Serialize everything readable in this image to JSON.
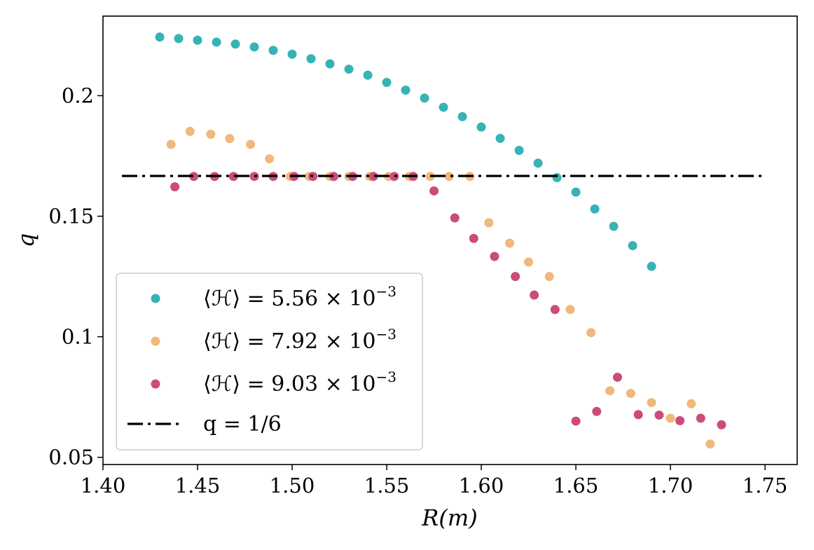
{
  "chart_data": {
    "type": "scatter",
    "title": "",
    "xlabel": "R(m)",
    "ylabel": "q",
    "xlim": [
      1.4,
      1.767
    ],
    "ylim": [
      0.047,
      0.233
    ],
    "xticks": [
      {
        "value": 1.4,
        "label": "1.40"
      },
      {
        "value": 1.45,
        "label": "1.45"
      },
      {
        "value": 1.5,
        "label": "1.50"
      },
      {
        "value": 1.55,
        "label": "1.55"
      },
      {
        "value": 1.6,
        "label": "1.60"
      },
      {
        "value": 1.65,
        "label": "1.65"
      },
      {
        "value": 1.7,
        "label": "1.70"
      },
      {
        "value": 1.75,
        "label": "1.75"
      }
    ],
    "yticks": [
      {
        "value": 0.05,
        "label": "0.05"
      },
      {
        "value": 0.1,
        "label": "0.1"
      },
      {
        "value": 0.15,
        "label": "0.15"
      },
      {
        "value": 0.2,
        "label": "0.2"
      }
    ],
    "grid": false,
    "legend_position": "lower-left",
    "series": [
      {
        "name": "⟨ℋ⟩ = 5.56 × 10⁻³",
        "color": "#36b3b5",
        "x": [
          1.43,
          1.44,
          1.45,
          1.46,
          1.47,
          1.48,
          1.49,
          1.5,
          1.51,
          1.52,
          1.53,
          1.54,
          1.55,
          1.56,
          1.57,
          1.58,
          1.59,
          1.6,
          1.61,
          1.62,
          1.63,
          1.64,
          1.65,
          1.66,
          1.67,
          1.68,
          1.69
        ],
        "y": [
          0.2243,
          0.2237,
          0.223,
          0.2222,
          0.2214,
          0.2202,
          0.2188,
          0.2172,
          0.2153,
          0.2132,
          0.211,
          0.2085,
          0.2055,
          0.2023,
          0.199,
          0.1952,
          0.1913,
          0.187,
          0.1823,
          0.1773,
          0.172,
          0.166,
          0.16,
          0.153,
          0.1458,
          0.1378,
          0.1292
        ]
      },
      {
        "name": "⟨ℋ⟩ = 7.92 × 10⁻³",
        "color": "#f0b87a",
        "x": [
          1.436,
          1.446,
          1.457,
          1.467,
          1.478,
          1.488,
          1.499,
          1.509,
          1.52,
          1.53,
          1.541,
          1.551,
          1.562,
          1.573,
          1.583,
          1.594,
          1.604,
          1.615,
          1.625,
          1.636,
          1.647,
          1.658,
          1.668,
          1.679,
          1.69,
          1.7,
          1.711,
          1.721
        ],
        "y": [
          0.1798,
          0.1852,
          0.184,
          0.1822,
          0.1798,
          0.1738,
          0.1665,
          0.1665,
          0.1665,
          0.1665,
          0.1665,
          0.1665,
          0.1665,
          0.1665,
          0.1665,
          0.1665,
          0.1473,
          0.1388,
          0.131,
          0.125,
          0.1113,
          0.1017,
          0.0776,
          0.0765,
          0.0727,
          0.0662,
          0.0722,
          0.0555
        ]
      },
      {
        "name": "⟨ℋ⟩ = 9.03 × 10⁻³",
        "color": "#cc4b79",
        "x": [
          1.438,
          1.448,
          1.459,
          1.469,
          1.48,
          1.49,
          1.501,
          1.511,
          1.522,
          1.532,
          1.543,
          1.554,
          1.564,
          1.575,
          1.586,
          1.596,
          1.607,
          1.618,
          1.628,
          1.639,
          1.65,
          1.661,
          1.672,
          1.683,
          1.694,
          1.705,
          1.716,
          1.727
        ],
        "y": [
          0.1622,
          0.1665,
          0.1665,
          0.1665,
          0.1665,
          0.1665,
          0.1665,
          0.1665,
          0.1665,
          0.1665,
          0.1665,
          0.1665,
          0.1665,
          0.1605,
          0.1493,
          0.1408,
          0.1333,
          0.125,
          0.1173,
          0.1113,
          0.065,
          0.069,
          0.0832,
          0.0677,
          0.0675,
          0.0652,
          0.0662,
          0.0635
        ]
      }
    ],
    "reference_line": {
      "label": "q = 1/6",
      "y": 0.1667,
      "x_range": [
        1.41,
        1.75
      ],
      "color": "#000000",
      "style": "dash-dot"
    },
    "legend": [
      {
        "kind": "marker",
        "color": "#36b3b5",
        "prefix": "⟨ℋ⟩ = 5.56 × 10",
        "exponent": "−3"
      },
      {
        "kind": "marker",
        "color": "#f0b87a",
        "prefix": "⟨ℋ⟩ = 7.92 × 10",
        "exponent": "−3"
      },
      {
        "kind": "marker",
        "color": "#cc4b79",
        "prefix": "⟨ℋ⟩ = 9.03 × 10",
        "exponent": "−3"
      },
      {
        "kind": "line",
        "color": "#000000",
        "prefix": "q = 1/6",
        "exponent": ""
      }
    ]
  }
}
